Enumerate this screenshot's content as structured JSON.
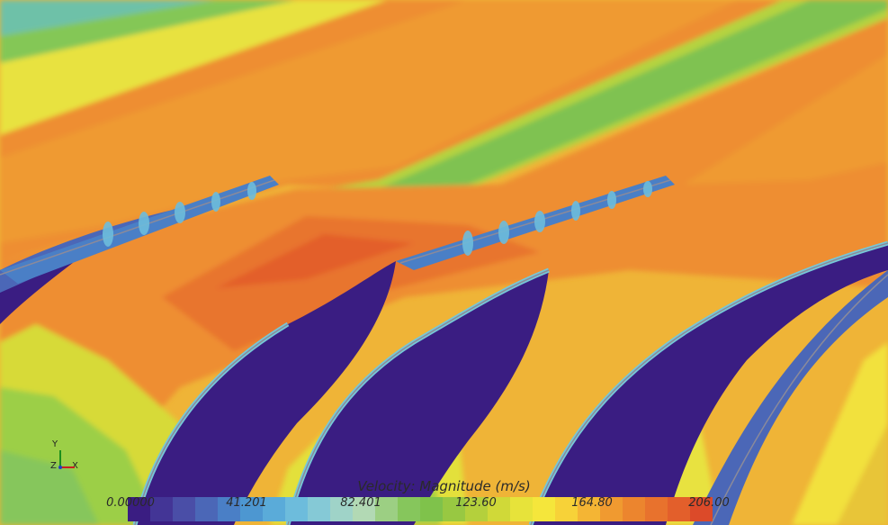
{
  "legend": {
    "title": "Velocity: Magnitude (m/s)",
    "ticks": [
      "0.00000",
      "41.201",
      "82.401",
      "123.60",
      "164.80",
      "206.00"
    ],
    "colormap": [
      "#3a1d82",
      "#433596",
      "#4a4ea7",
      "#4b67b7",
      "#4a7fc6",
      "#4d97d1",
      "#5aabd9",
      "#6dbcdc",
      "#85c9d6",
      "#9fd3c8",
      "#b2d9b4",
      "#9ccf83",
      "#86c65c",
      "#7fc24b",
      "#98c842",
      "#b4d03c",
      "#d0d938",
      "#e7e33a",
      "#f5e63b",
      "#f7d238",
      "#f4b534",
      "#f09a30",
      "#ec852e",
      "#e8722d",
      "#e35f2b",
      "#dc4a29"
    ],
    "colors": {
      "purple": "#3b1f86",
      "blue": "#3b6fc4",
      "cyan": "#76c8d8",
      "green": "#7fc447",
      "yellow": "#f4e43c",
      "orange": "#ee8a30",
      "red": "#e5542a"
    }
  },
  "triad": {
    "y": "Y",
    "z": "Z",
    "x": "X"
  },
  "chart_data": {
    "type": "heatmap",
    "title": "Velocity: Magnitude (m/s)",
    "quantity": "Velocity: Magnitude",
    "unit": "m/s",
    "colorbar_range": [
      0.0,
      206.0
    ],
    "colorbar_ticks": [
      0.0,
      41.201,
      82.401,
      123.6,
      164.8,
      206.0
    ]
  }
}
